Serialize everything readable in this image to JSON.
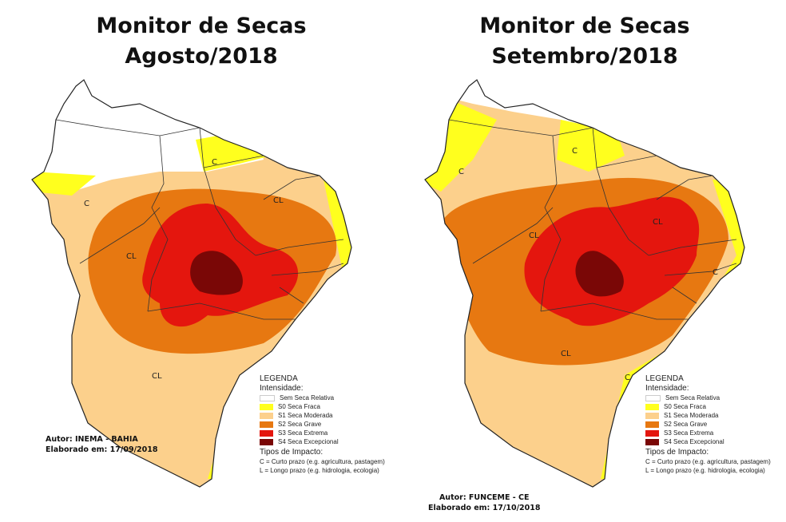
{
  "colors": {
    "none": "#ffffff",
    "s0": "#ffff1e",
    "s1": "#fcd08c",
    "s2": "#e77811",
    "s3": "#e4160e",
    "s4": "#7a0706"
  },
  "maps": [
    {
      "title_line1": "Monitor de Secas",
      "title_line2": "Agosto/2018",
      "author": "Autor: INEMA - BAHIA",
      "date": "Elaborado em: 17/09/2018",
      "labels": [
        "C",
        "C",
        "CL",
        "CL",
        "CL"
      ]
    },
    {
      "title_line1": "Monitor de Secas",
      "title_line2": "Setembro/2018",
      "author": "Autor: FUNCEME - CE",
      "date": "Elaborado em: 17/10/2018",
      "labels": [
        "C",
        "C",
        "CL",
        "CL",
        "CL",
        "C",
        "C"
      ]
    }
  ],
  "legend": {
    "title": "LEGENDA",
    "intensity_heading": "Intensidade:",
    "items": [
      {
        "label": "Sem Seca Relativa",
        "color": "#ffffff"
      },
      {
        "label": "S0 Seca Fraca",
        "color": "#ffff1e"
      },
      {
        "label": "S1 Seca Moderada",
        "color": "#fcd08c"
      },
      {
        "label": "S2 Seca Grave",
        "color": "#e77811"
      },
      {
        "label": "S3 Seca Extrema",
        "color": "#e4160e"
      },
      {
        "label": "S4 Seca Excepcional",
        "color": "#7a0706"
      }
    ],
    "impact_heading": "Tipos de Impacto:",
    "impact_c": "C = Curto prazo (e.g. agricultura, pastagem)",
    "impact_l": "L = Longo prazo (e.g. hidrologia, ecologia)"
  }
}
